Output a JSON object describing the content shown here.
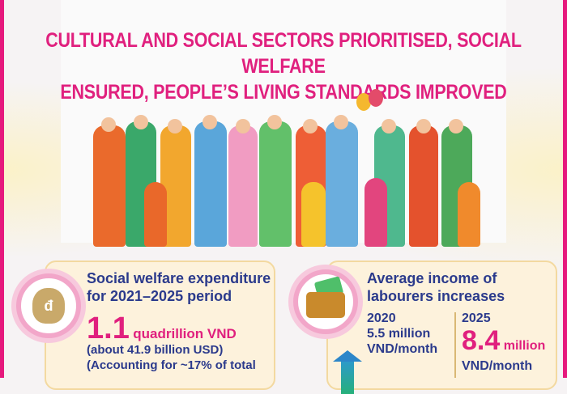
{
  "title": {
    "line1": "CULTURAL AND SOCIAL SECTORS PRIORITISED, SOCIAL WELFARE",
    "line2": "ENSURED, PEOPLE’S LIVING STANDARDS IMPROVED"
  },
  "colors": {
    "accent": "#e0207e",
    "heading": "#2b3a8c",
    "card_bg": "#fdf2dc"
  },
  "welfare": {
    "icon": "money-bag-icon",
    "heading_line1": "Social welfare expenditure",
    "heading_line2": "for 2021–2025 period",
    "value": "1.1",
    "unit": "quadrillion VND",
    "usd": "(about 41.9 billion USD)",
    "share": "(Accounting for ~17% of total"
  },
  "income": {
    "icon": "wallet-icon",
    "heading_line1": "Average income of",
    "heading_line2": "labourers increases",
    "year_2020": "2020",
    "value_2020": "5.5 million",
    "unit_2020": "VND/month",
    "year_2025": "2025",
    "value_2025": "8.4",
    "value_2025_unit": "million",
    "unit_2025": "VND/month"
  }
}
